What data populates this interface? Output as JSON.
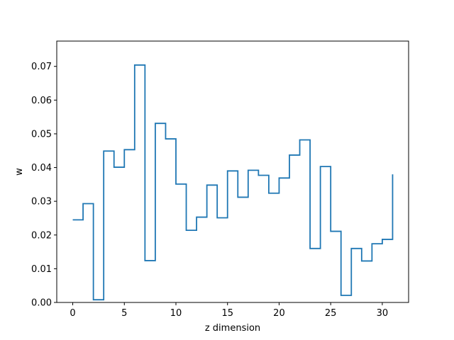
{
  "chart_data": {
    "type": "line",
    "drawstyle": "steps-post",
    "title": "",
    "xlabel": "z dimension",
    "ylabel": "w",
    "xlim": [
      -1.55,
      32.55
    ],
    "ylim": [
      0,
      0.0775
    ],
    "grid": false,
    "x_ticks": [
      0,
      5,
      10,
      15,
      20,
      25,
      30
    ],
    "x_tick_labels": [
      "0",
      "5",
      "10",
      "15",
      "20",
      "25",
      "30"
    ],
    "y_ticks": [
      0.0,
      0.01,
      0.02,
      0.03,
      0.04,
      0.05,
      0.06,
      0.07
    ],
    "y_tick_labels": [
      "0.00",
      "0.01",
      "0.02",
      "0.03",
      "0.04",
      "0.05",
      "0.06",
      "0.07"
    ],
    "series": [
      {
        "color": "#1f77b4",
        "x": [
          0,
          1,
          2,
          3,
          4,
          5,
          6,
          7,
          8,
          9,
          10,
          11,
          12,
          13,
          14,
          15,
          16,
          17,
          18,
          19,
          20,
          21,
          22,
          23,
          24,
          25,
          26,
          27,
          28,
          29,
          30,
          31
        ],
        "values": [
          0.0245,
          0.0293,
          0.0008,
          0.0449,
          0.0401,
          0.0453,
          0.0704,
          0.0124,
          0.0531,
          0.0485,
          0.0351,
          0.0214,
          0.0253,
          0.0348,
          0.0251,
          0.039,
          0.0312,
          0.0392,
          0.0377,
          0.0324,
          0.0369,
          0.0437,
          0.0482,
          0.016,
          0.0403,
          0.0211,
          0.0021,
          0.016,
          0.0123,
          0.0174,
          0.0187,
          0.038
        ]
      }
    ]
  }
}
